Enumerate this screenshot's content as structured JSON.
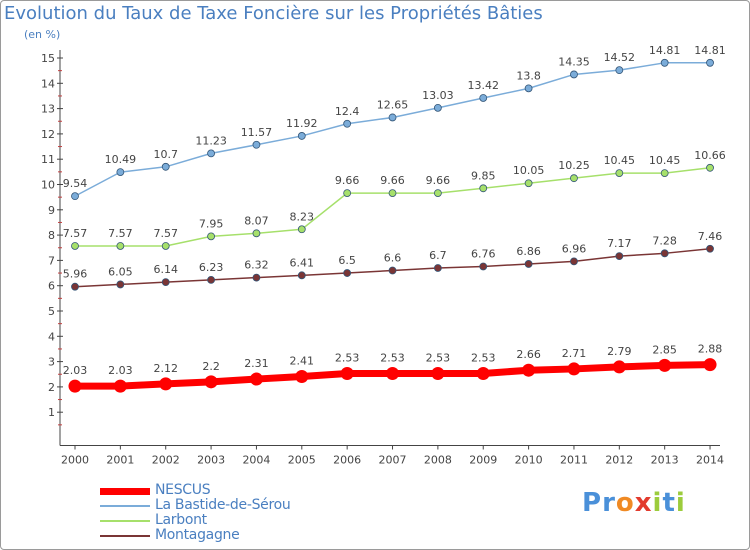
{
  "title": "Evolution du Taux de Taxe Foncière sur les Propriétés Bâties",
  "unit_label": "(en %)",
  "chart_data": {
    "type": "line",
    "x": [
      2000,
      2001,
      2002,
      2003,
      2004,
      2005,
      2006,
      2007,
      2008,
      2009,
      2010,
      2011,
      2012,
      2013,
      2014
    ],
    "ylim": [
      0,
      15
    ],
    "yticks": [
      1,
      2,
      3,
      4,
      5,
      6,
      7,
      8,
      9,
      10,
      11,
      12,
      13,
      14,
      15
    ],
    "grid": false,
    "legend_position": "bottom-left",
    "series": [
      {
        "name": "NESCUS",
        "color": "#ff0000",
        "values": [
          2.03,
          2.03,
          2.12,
          2.2,
          2.31,
          2.41,
          2.53,
          2.53,
          2.53,
          2.53,
          2.66,
          2.71,
          2.79,
          2.85,
          2.88
        ],
        "labels": [
          "2.03",
          "2.03",
          "2.12",
          "2.2",
          "2.31",
          "2.41",
          "2.53",
          "2.53",
          "2.53",
          "2.53",
          "2.66",
          "2.71",
          "2.79",
          "2.85",
          "2.88"
        ]
      },
      {
        "name": "La Bastide-de-Sérou",
        "color": "#7bacd9",
        "values": [
          9.54,
          10.49,
          10.7,
          11.23,
          11.57,
          11.92,
          12.4,
          12.65,
          13.03,
          13.42,
          13.8,
          14.35,
          14.52,
          14.81,
          14.81
        ],
        "labels": [
          "9.54",
          "10.49",
          "10.7",
          "11.23",
          "11.57",
          "11.92",
          "12.4",
          "12.65",
          "13.03",
          "13.42",
          "13.8",
          "14.35",
          "14.52",
          "14.81",
          "14.81"
        ]
      },
      {
        "name": "Larbont",
        "color": "#a6e06b",
        "values": [
          7.57,
          7.57,
          7.57,
          7.95,
          8.07,
          8.23,
          9.66,
          9.66,
          9.66,
          9.85,
          10.05,
          10.25,
          10.45,
          10.45,
          10.66
        ],
        "labels": [
          "7.57",
          "7.57",
          "7.57",
          "7.95",
          "8.07",
          "8.23",
          "9.66",
          "9.66",
          "9.66",
          "9.85",
          "10.05",
          "10.25",
          "10.45",
          "10.45",
          "10.66"
        ]
      },
      {
        "name": "Montagagne",
        "color": "#7a3535",
        "values": [
          5.96,
          6.05,
          6.14,
          6.23,
          6.32,
          6.41,
          6.5,
          6.6,
          6.7,
          6.76,
          6.86,
          6.96,
          7.17,
          7.28,
          7.46
        ],
        "labels": [
          "5.96",
          "6.05",
          "6.14",
          "6.23",
          "6.32",
          "6.41",
          "6.5",
          "6.6",
          "6.7",
          "6.76",
          "6.86",
          "6.96",
          "7.17",
          "7.28",
          "7.46"
        ]
      }
    ]
  },
  "logo": {
    "text": "Proxiti",
    "letter_colors": [
      "#4a90d9",
      "#4a90d9",
      "#f08a24",
      "#e23b2e",
      "#9ccc3c",
      "#4a90d9",
      "#9ccc3c"
    ]
  }
}
